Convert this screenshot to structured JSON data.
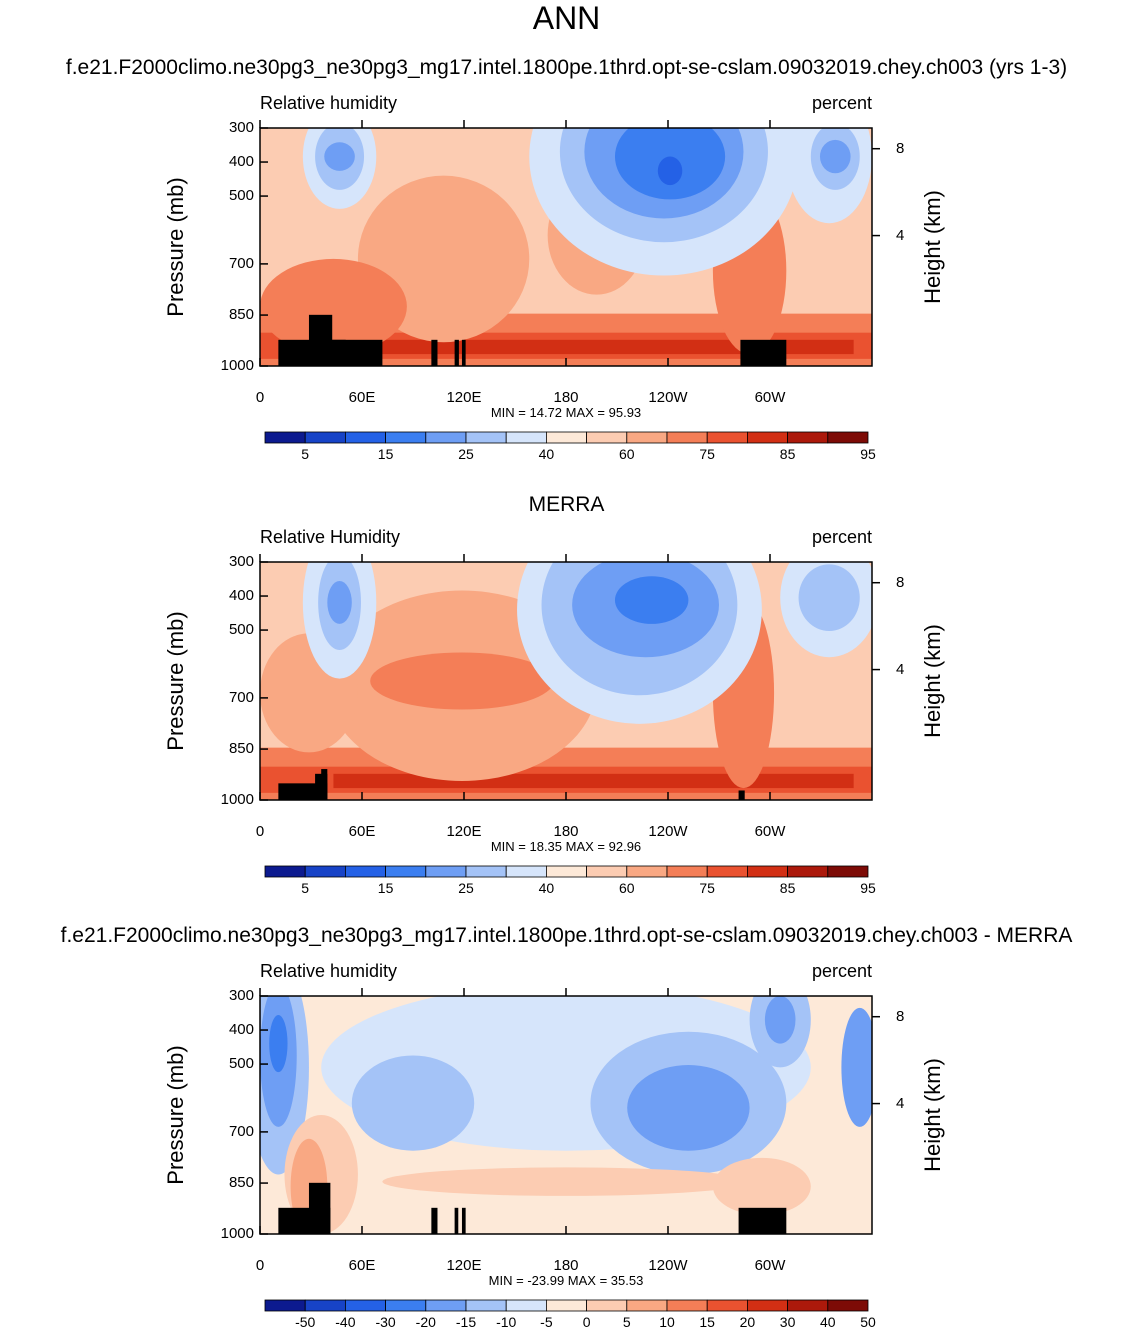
{
  "page": {
    "title": "ANN",
    "line2_title": "f.e21.F2000climo.ne30pg3_ne30pg3_mg17.intel.1800pe.1thrd.opt-se-cslam.09032019.chey.ch003 (yrs 1-3)"
  },
  "panels": [
    {
      "title": "",
      "left_label": "Relative humidity",
      "right_label": "percent",
      "stats": "MIN =  14.72  MAX =  95.93"
    },
    {
      "title": "MERRA",
      "left_label": "Relative Humidity",
      "right_label": "percent",
      "stats": "MIN =  18.35  MAX =  92.96"
    },
    {
      "title": "f.e21.F2000climo.ne30pg3_ne30pg3_mg17.intel.1800pe.1thrd.opt-se-cslam.09032019.chey.ch003 - MERRA",
      "left_label": "Relative humidity",
      "right_label": "percent",
      "stats": "MIN = -23.99  MAX = 35.53"
    }
  ],
  "axes": {
    "ylabel": "Pressure (mb)",
    "y2label": "Height (km)",
    "yticks": [
      "300",
      "400",
      "500",
      "700",
      "850",
      "1000"
    ],
    "y2ticks": [
      "8",
      "4"
    ],
    "xticks": [
      "0",
      "60E",
      "120E",
      "180",
      "120W",
      "60W"
    ]
  },
  "colorbars": {
    "abs_labels": [
      "5",
      "15",
      "25",
      "40",
      "60",
      "75",
      "85",
      "95"
    ],
    "diff_labels": [
      "-50",
      "-40",
      "-30",
      "-20",
      "-15",
      "-10",
      "-5",
      "0",
      "5",
      "10",
      "15",
      "20",
      "30",
      "40",
      "50"
    ],
    "abs_colors": [
      "#0c1a8f",
      "#1743c7",
      "#2461e6",
      "#3b7ef0",
      "#6e9ef4",
      "#a4c3f7",
      "#d6e5fb",
      "#fde9d8",
      "#fcccb2",
      "#f9a883",
      "#f47e57",
      "#ea5230",
      "#d22f14",
      "#ac190b",
      "#7d0b06"
    ],
    "diff_colors": [
      "#0c1a8f",
      "#1743c7",
      "#2461e6",
      "#3b7ef0",
      "#6e9ef4",
      "#a4c3f7",
      "#d6e5fb",
      "#fde9d8",
      "#fcccb2",
      "#f9a883",
      "#f47e57",
      "#ea5230",
      "#d22f14",
      "#ac190b",
      "#7d0b06"
    ]
  },
  "chart_data": [
    {
      "type": "heatmap",
      "title": "Relative humidity",
      "units": "percent",
      "x": [
        "0",
        "60E",
        "120E",
        "180",
        "120W",
        "60W"
      ],
      "y": [
        300,
        400,
        500,
        700,
        850,
        1000
      ],
      "ylabel": "Pressure (mb)",
      "y2label": "Height (km)",
      "min": 14.72,
      "max": 95.93,
      "levels": [
        5,
        15,
        25,
        40,
        60,
        75,
        85,
        95
      ]
    },
    {
      "type": "heatmap",
      "title": "MERRA Relative Humidity",
      "units": "percent",
      "x": [
        "0",
        "60E",
        "120E",
        "180",
        "120W",
        "60W"
      ],
      "y": [
        300,
        400,
        500,
        700,
        850,
        1000
      ],
      "ylabel": "Pressure (mb)",
      "y2label": "Height (km)",
      "min": 18.35,
      "max": 92.96,
      "levels": [
        5,
        15,
        25,
        40,
        60,
        75,
        85,
        95
      ]
    },
    {
      "type": "heatmap",
      "title": "Relative humidity (model - MERRA)",
      "units": "percent",
      "x": [
        "0",
        "60E",
        "120E",
        "180",
        "120W",
        "60W"
      ],
      "y": [
        300,
        400,
        500,
        700,
        850,
        1000
      ],
      "ylabel": "Pressure (mb)",
      "y2label": "Height (km)",
      "min": -23.99,
      "max": 35.53,
      "levels": [
        -50,
        -40,
        -30,
        -20,
        -15,
        -10,
        -5,
        0,
        5,
        10,
        15,
        20,
        30,
        40,
        50
      ]
    }
  ]
}
